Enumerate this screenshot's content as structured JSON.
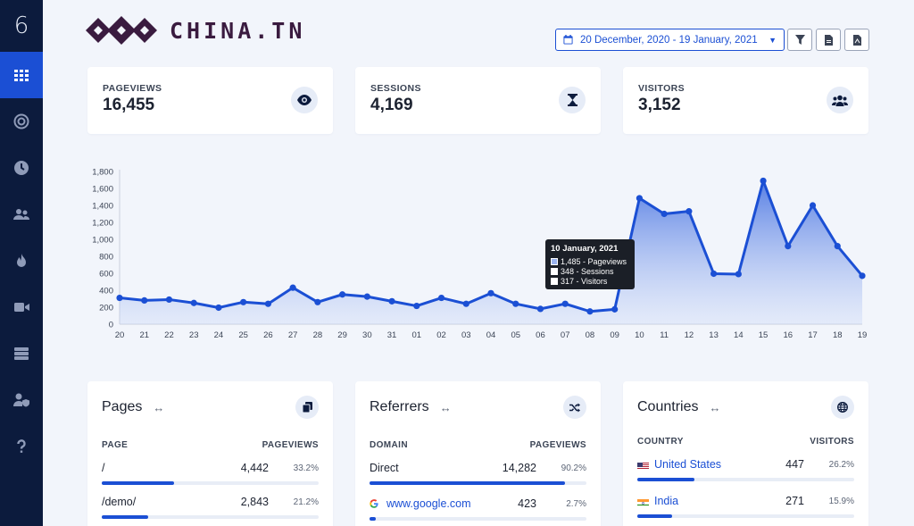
{
  "sidebar": {
    "logo": "6",
    "items": [
      {
        "name": "dashboard",
        "icon": "grid-icon",
        "active": true
      },
      {
        "name": "realtime",
        "icon": "target-icon"
      },
      {
        "name": "history",
        "icon": "clock-icon"
      },
      {
        "name": "users",
        "icon": "users-icon"
      },
      {
        "name": "trending",
        "icon": "fire-icon"
      },
      {
        "name": "videos",
        "icon": "video-icon"
      },
      {
        "name": "servers",
        "icon": "server-icon"
      },
      {
        "name": "admin",
        "icon": "user-shield-icon"
      },
      {
        "name": "help",
        "icon": "question-icon"
      }
    ]
  },
  "header": {
    "brand": "CHINA.TN",
    "date_range": "20 December, 2020 - 19 January, 2021",
    "tools": [
      "filter-icon",
      "file-csv-icon",
      "file-pdf-icon"
    ]
  },
  "stats": [
    {
      "label": "PAGEVIEWS",
      "value": "16,455",
      "icon": "eye-icon"
    },
    {
      "label": "SESSIONS",
      "value": "4,169",
      "icon": "hourglass-icon"
    },
    {
      "label": "VISITORS",
      "value": "3,152",
      "icon": "users-icon"
    }
  ],
  "chart_data": {
    "type": "area",
    "categories": [
      "20",
      "21",
      "22",
      "23",
      "24",
      "25",
      "26",
      "27",
      "28",
      "29",
      "30",
      "31",
      "01",
      "02",
      "03",
      "04",
      "05",
      "06",
      "07",
      "08",
      "09",
      "10",
      "11",
      "12",
      "13",
      "14",
      "15",
      "16",
      "17",
      "18",
      "19"
    ],
    "series": [
      {
        "name": "Pageviews",
        "values": [
          310,
          280,
          290,
          250,
          195,
          260,
          240,
          430,
          260,
          350,
          325,
          270,
          215,
          310,
          240,
          365,
          240,
          180,
          240,
          150,
          175,
          1485,
          1300,
          1330,
          595,
          590,
          1690,
          920,
          1400,
          920,
          570
        ]
      }
    ],
    "yticks": [
      "0",
      "200",
      "400",
      "600",
      "800",
      "1,000",
      "1,200",
      "1,400",
      "1,600",
      "1,800"
    ],
    "ylim": [
      0,
      1800
    ],
    "color": "#1b4fd4",
    "tooltip": {
      "title": "10 January, 2021",
      "rows": [
        {
          "text": "1,485 - Pageviews",
          "color": "#9bb4ef"
        },
        {
          "text": "348 - Sessions",
          "color": "#ffffff"
        },
        {
          "text": "317 - Visitors",
          "color": "#ffffff"
        }
      ]
    }
  },
  "panels": {
    "pages": {
      "title": "Pages",
      "icon": "copy-icon",
      "col_left": "PAGE",
      "col_right": "PAGEVIEWS",
      "rows": [
        {
          "name": "/",
          "value": "4,442",
          "pct": "33.2%",
          "fill": 0.332
        },
        {
          "name": "/demo/",
          "value": "2,843",
          "pct": "21.2%",
          "fill": 0.212
        }
      ]
    },
    "referrers": {
      "title": "Referrers",
      "icon": "shuffle-icon",
      "col_left": "DOMAIN",
      "col_right": "PAGEVIEWS",
      "rows": [
        {
          "name": "Direct",
          "value": "14,282",
          "pct": "90.2%",
          "fill": 0.902
        },
        {
          "name": "www.google.com",
          "value": "423",
          "pct": "2.7%",
          "fill": 0.027
        }
      ]
    },
    "countries": {
      "title": "Countries",
      "icon": "globe-icon",
      "col_left": "COUNTRY",
      "col_right": "VISITORS",
      "rows": [
        {
          "name": "United States",
          "value": "447",
          "pct": "26.2%",
          "fill": 0.262
        },
        {
          "name": "India",
          "value": "271",
          "pct": "15.9%",
          "fill": 0.159
        }
      ]
    }
  }
}
